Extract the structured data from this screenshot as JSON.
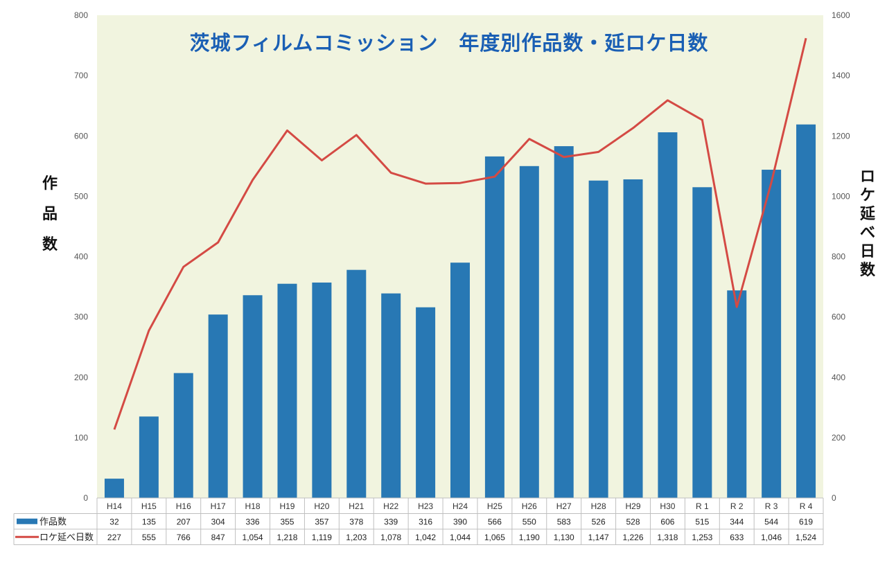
{
  "chart_data": {
    "type": "bar",
    "title": "茨城フィルムコミッション　年度別作品数・延ロケ日数",
    "categories": [
      "H14",
      "H15",
      "H16",
      "H17",
      "H18",
      "H19",
      "H20",
      "H21",
      "H22",
      "H23",
      "H24",
      "H25",
      "H26",
      "H27",
      "H28",
      "H29",
      "H30",
      "R 1",
      "R 2",
      "R 3",
      "R 4"
    ],
    "series": [
      {
        "name": "作品数",
        "type": "bar",
        "axis": "left",
        "color": "#2878b4",
        "values": [
          32,
          135,
          207,
          304,
          336,
          355,
          357,
          378,
          339,
          316,
          390,
          566,
          550,
          583,
          526,
          528,
          606,
          515,
          344,
          544,
          619
        ],
        "labels": [
          "32",
          "135",
          "207",
          "304",
          "336",
          "355",
          "357",
          "378",
          "339",
          "316",
          "390",
          "566",
          "550",
          "583",
          "526",
          "528",
          "606",
          "515",
          "344",
          "544",
          "619"
        ]
      },
      {
        "name": "ロケ延べ日数",
        "type": "line",
        "axis": "right",
        "color": "#d44a44",
        "values": [
          227,
          555,
          766,
          847,
          1054,
          1218,
          1119,
          1203,
          1078,
          1042,
          1044,
          1065,
          1190,
          1130,
          1147,
          1226,
          1318,
          1253,
          633,
          1046,
          1524
        ],
        "labels": [
          "227",
          "555",
          "766",
          "847",
          "1,054",
          "1,218",
          "1,119",
          "1,203",
          "1,078",
          "1,042",
          "1,044",
          "1,065",
          "1,190",
          "1,130",
          "1,147",
          "1,226",
          "1,318",
          "1,253",
          "633",
          "1,046",
          "1,524"
        ]
      }
    ],
    "ylabel_left": "作品数",
    "ylabel_right": "ロケ延べ日数",
    "ylim_left": [
      0,
      800
    ],
    "ylim_right": [
      0,
      1600
    ],
    "yticks_left": [
      "0",
      "100",
      "200",
      "300",
      "400",
      "500",
      "600",
      "700",
      "800"
    ],
    "yticks_right": [
      "0",
      "200",
      "400",
      "600",
      "800",
      "1000",
      "1200",
      "1400",
      "1600"
    ],
    "grid": false,
    "legend": "data-table",
    "colors": {
      "plot_background": "#f1f4df",
      "title": "#1a5fb4"
    }
  }
}
